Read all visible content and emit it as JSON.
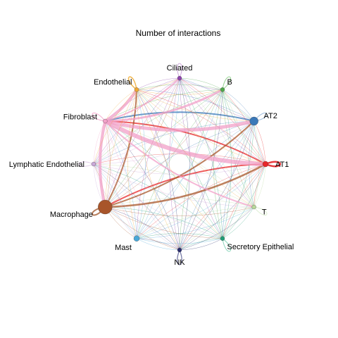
{
  "title": "Number of interactions",
  "chart_data": {
    "type": "network",
    "title": "Number of interactions",
    "layout": "circle",
    "nodes": [
      {
        "id": "Ciliated",
        "label": "Ciliated",
        "color": "#8e44ad",
        "size": 3
      },
      {
        "id": "B",
        "label": "B",
        "color": "#4fa84a",
        "size": 3
      },
      {
        "id": "AT2",
        "label": "AT2",
        "color": "#3a78b8",
        "size": 6
      },
      {
        "id": "AT1",
        "label": "AT1",
        "color": "#e8272a",
        "size": 4
      },
      {
        "id": "T",
        "label": "T",
        "color": "#b8d89a",
        "size": 3
      },
      {
        "id": "Secretory Epithelial",
        "label": "Secretory Epithelial",
        "color": "#1f9e75",
        "size": 3
      },
      {
        "id": "NK",
        "label": "NK",
        "color": "#2b2f6e",
        "size": 3
      },
      {
        "id": "Mast",
        "label": "Mast",
        "color": "#4aa8d8",
        "size": 4
      },
      {
        "id": "Macrophage",
        "label": "Macrophage",
        "color": "#a8552a",
        "size": 10
      },
      {
        "id": "Lymphatic Endothelial",
        "label": "Lymphatic Endothelial",
        "color": "#c9a8d8",
        "size": 3
      },
      {
        "id": "Fibroblast",
        "label": "Fibroblast",
        "color": "#f2a0c8",
        "size": 3
      },
      {
        "id": "Endothelial",
        "label": "Endothelial",
        "color": "#f0a830",
        "size": 3
      }
    ],
    "self_loops": [
      {
        "node": "Ciliated",
        "color": "#c9a0d8",
        "weight": 1
      },
      {
        "node": "B",
        "color": "#8ccf86",
        "weight": 1
      },
      {
        "node": "AT2",
        "color": "#8fb3d8",
        "weight": 1
      },
      {
        "node": "AT1",
        "color": "#e8272a",
        "weight": 2.5
      },
      {
        "node": "T",
        "color": "#d8eccb",
        "weight": 1
      },
      {
        "node": "Secretory Epithelial",
        "color": "#80cfb4",
        "weight": 1
      },
      {
        "node": "NK",
        "color": "#6a6e9e",
        "weight": 1.3
      },
      {
        "node": "Macrophage",
        "color": "#b0704a",
        "weight": 2
      },
      {
        "node": "Lymphatic Endothelial",
        "color": "#e0c8e8",
        "weight": 1
      },
      {
        "node": "Fibroblast",
        "color": "#f2a0c8",
        "weight": 1
      },
      {
        "node": "Endothelial",
        "color": "#f0b040",
        "weight": 1.5
      }
    ],
    "edge_weights": {
      "Fibroblast": {
        "AT1": 6,
        "AT2": 5,
        "Endothelial": 4,
        "Macrophage": 4,
        "B": 3,
        "Ciliated": 2,
        "T": 2
      },
      "Macrophage": {
        "AT1": 2.5,
        "AT2": 2,
        "Endothelial": 2
      },
      "AT1": {
        "Fibroblast": 2,
        "Macrophage": 2
      },
      "AT2": {
        "Fibroblast": 2
      }
    }
  }
}
